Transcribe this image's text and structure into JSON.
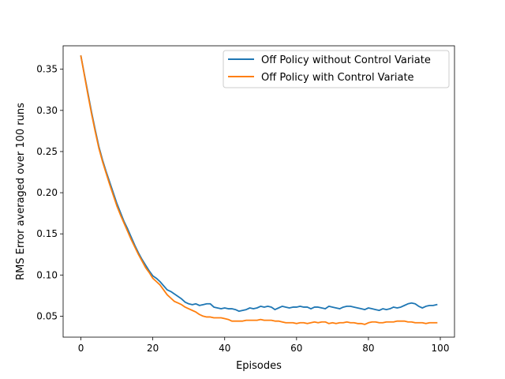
{
  "chart_data": {
    "type": "line",
    "title": "",
    "xlabel": "Episodes",
    "ylabel": "RMS Error averaged over 100 runs",
    "xlim": [
      -4.95,
      103.95
    ],
    "ylim": [
      0.0245,
      0.3785
    ],
    "xticks": [
      0,
      20,
      40,
      60,
      80,
      100
    ],
    "yticks": [
      0.05,
      0.1,
      0.15,
      0.2,
      0.25,
      0.3,
      0.35
    ],
    "ytick_labels": [
      "0.05",
      "0.10",
      "0.15",
      "0.20",
      "0.25",
      "0.30",
      "0.35"
    ],
    "grid": false,
    "legend_position": "top-right",
    "series": [
      {
        "name": "Off Policy without Control Variate",
        "color": "#1f77b4",
        "values": [
          0.366,
          0.343,
          0.32,
          0.297,
          0.276,
          0.256,
          0.24,
          0.226,
          0.213,
          0.2,
          0.187,
          0.176,
          0.165,
          0.156,
          0.146,
          0.136,
          0.127,
          0.119,
          0.112,
          0.105,
          0.099,
          0.096,
          0.092,
          0.087,
          0.082,
          0.08,
          0.077,
          0.074,
          0.071,
          0.067,
          0.065,
          0.064,
          0.065,
          0.063,
          0.064,
          0.065,
          0.065,
          0.061,
          0.06,
          0.059,
          0.06,
          0.059,
          0.059,
          0.058,
          0.056,
          0.057,
          0.058,
          0.06,
          0.059,
          0.06,
          0.062,
          0.061,
          0.062,
          0.061,
          0.058,
          0.06,
          0.062,
          0.061,
          0.06,
          0.061,
          0.061,
          0.062,
          0.061,
          0.061,
          0.059,
          0.061,
          0.061,
          0.06,
          0.059,
          0.062,
          0.061,
          0.06,
          0.059,
          0.061,
          0.062,
          0.062,
          0.061,
          0.06,
          0.059,
          0.058,
          0.06,
          0.059,
          0.058,
          0.057,
          0.059,
          0.058,
          0.059,
          0.061,
          0.06,
          0.061,
          0.063,
          0.065,
          0.066,
          0.065,
          0.062,
          0.06,
          0.062,
          0.063,
          0.063,
          0.064
        ]
      },
      {
        "name": "Off Policy with Control Variate",
        "color": "#ff7f0e",
        "values": [
          0.366,
          0.342,
          0.318,
          0.295,
          0.274,
          0.254,
          0.238,
          0.224,
          0.21,
          0.197,
          0.184,
          0.173,
          0.163,
          0.153,
          0.143,
          0.134,
          0.125,
          0.117,
          0.109,
          0.103,
          0.096,
          0.092,
          0.088,
          0.082,
          0.076,
          0.072,
          0.068,
          0.066,
          0.064,
          0.061,
          0.059,
          0.057,
          0.055,
          0.052,
          0.05,
          0.049,
          0.049,
          0.048,
          0.048,
          0.048,
          0.047,
          0.046,
          0.044,
          0.044,
          0.044,
          0.044,
          0.045,
          0.045,
          0.045,
          0.045,
          0.046,
          0.045,
          0.045,
          0.045,
          0.044,
          0.044,
          0.043,
          0.042,
          0.042,
          0.042,
          0.041,
          0.042,
          0.042,
          0.041,
          0.042,
          0.043,
          0.042,
          0.043,
          0.043,
          0.041,
          0.042,
          0.041,
          0.042,
          0.042,
          0.043,
          0.042,
          0.042,
          0.041,
          0.041,
          0.04,
          0.042,
          0.043,
          0.043,
          0.042,
          0.042,
          0.043,
          0.043,
          0.043,
          0.044,
          0.044,
          0.044,
          0.043,
          0.043,
          0.042,
          0.042,
          0.042,
          0.041,
          0.042,
          0.042,
          0.042
        ]
      }
    ]
  }
}
